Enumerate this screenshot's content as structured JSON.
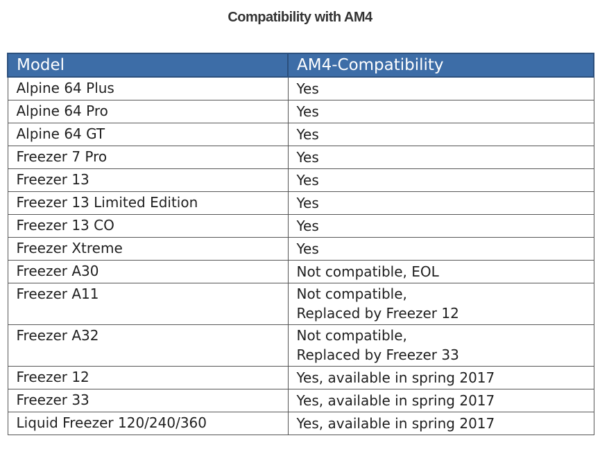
{
  "chart_data": {
    "type": "table",
    "title": "Compatibility with AM4",
    "columns": [
      "Model",
      "AM4-Compatibility"
    ],
    "rows": [
      {
        "model": "Alpine 64 Plus",
        "compat": [
          "Yes"
        ]
      },
      {
        "model": "Alpine 64 Pro",
        "compat": [
          "Yes"
        ]
      },
      {
        "model": "Alpine 64 GT",
        "compat": [
          "Yes"
        ]
      },
      {
        "model": "Freezer 7 Pro",
        "compat": [
          "Yes"
        ]
      },
      {
        "model": "Freezer 13",
        "compat": [
          "Yes"
        ]
      },
      {
        "model": "Freezer 13 Limited Edition",
        "compat": [
          "Yes"
        ]
      },
      {
        "model": "Freezer 13 CO",
        "compat": [
          "Yes"
        ]
      },
      {
        "model": "Freezer Xtreme",
        "compat": [
          "Yes"
        ]
      },
      {
        "model": "Freezer A30",
        "compat": [
          "Not compatible, EOL"
        ]
      },
      {
        "model": "Freezer A11",
        "compat": [
          "Not compatible,",
          "Replaced by Freezer 12"
        ]
      },
      {
        "model": "Freezer A32",
        "compat": [
          "Not compatible,",
          "Replaced by Freezer 33"
        ]
      },
      {
        "model": "Freezer 12",
        "compat": [
          "Yes, available in spring 2017"
        ]
      },
      {
        "model": "Freezer 33",
        "compat": [
          "Yes, available in spring 2017"
        ]
      },
      {
        "model": "Liquid Freezer 120/240/360",
        "compat": [
          "Yes, available in spring 2017"
        ]
      }
    ],
    "colors": {
      "header_bg": "#3d6da7",
      "header_text": "#ffffff",
      "grid": "#555555"
    }
  }
}
